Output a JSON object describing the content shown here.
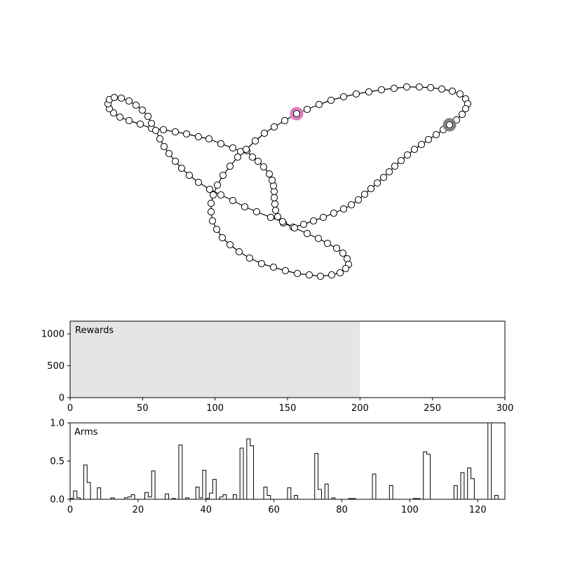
{
  "chart_data": [
    {
      "type": "scatter",
      "title": "",
      "markers": "circles connected by a closed line (tour)",
      "axes_visible": false,
      "highlights": [
        {
          "role": "pink ring",
          "color": "#e377c2",
          "point": [
            423,
            162
          ]
        },
        {
          "role": "gray ring",
          "color": "#7f7f7f",
          "point": [
            641,
            178
          ]
        }
      ],
      "points": [
        [
          423,
          162
        ],
        [
          438,
          156
        ],
        [
          455,
          149
        ],
        [
          472,
          143
        ],
        [
          490,
          138
        ],
        [
          508,
          134
        ],
        [
          526,
          131
        ],
        [
          544,
          128
        ],
        [
          562,
          126
        ],
        [
          580,
          124
        ],
        [
          598,
          124
        ],
        [
          614,
          125
        ],
        [
          630,
          127
        ],
        [
          645,
          130
        ],
        [
          656,
          134
        ],
        [
          664,
          141
        ],
        [
          667,
          148
        ],
        [
          664,
          155
        ],
        [
          659,
          163
        ],
        [
          651,
          171
        ],
        [
          641,
          178
        ],
        [
          632,
          185
        ],
        [
          622,
          192
        ],
        [
          611,
          199
        ],
        [
          601,
          206
        ],
        [
          591,
          213
        ],
        [
          581,
          221
        ],
        [
          572,
          229
        ],
        [
          563,
          237
        ],
        [
          555,
          245
        ],
        [
          547,
          253
        ],
        [
          538,
          261
        ],
        [
          529,
          269
        ],
        [
          520,
          277
        ],
        [
          511,
          285
        ],
        [
          501,
          292
        ],
        [
          490,
          298
        ],
        [
          476,
          304
        ],
        [
          461,
          310
        ],
        [
          447,
          315
        ],
        [
          433,
          320
        ],
        [
          418,
          324
        ],
        [
          404,
          318
        ],
        [
          396,
          309
        ],
        [
          393,
          300
        ],
        [
          392,
          291
        ],
        [
          391,
          282
        ],
        [
          391,
          273
        ],
        [
          390,
          265
        ],
        [
          388,
          257
        ],
        [
          384,
          248
        ],
        [
          376,
          238
        ],
        [
          368,
          230
        ],
        [
          360,
          224
        ],
        [
          352,
          215
        ],
        [
          343,
          216
        ],
        [
          332,
          211
        ],
        [
          315,
          205
        ],
        [
          298,
          198
        ],
        [
          283,
          195
        ],
        [
          266,
          191
        ],
        [
          250,
          188
        ],
        [
          233,
          185
        ],
        [
          216,
          183
        ],
        [
          200,
          177
        ],
        [
          184,
          172
        ],
        [
          171,
          167
        ],
        [
          162,
          161
        ],
        [
          156,
          155
        ],
        [
          154,
          148
        ],
        [
          156,
          142
        ],
        [
          163,
          139
        ],
        [
          173,
          140
        ],
        [
          184,
          144
        ],
        [
          194,
          150
        ],
        [
          203,
          157
        ],
        [
          211,
          166
        ],
        [
          216,
          176
        ],
        [
          222,
          186
        ],
        [
          228,
          198
        ],
        [
          234,
          209
        ],
        [
          241,
          219
        ],
        [
          250,
          230
        ],
        [
          259,
          240
        ],
        [
          270,
          250
        ],
        [
          283,
          260
        ],
        [
          299,
          270
        ],
        [
          315,
          278
        ],
        [
          332,
          286
        ],
        [
          349,
          295
        ],
        [
          366,
          302
        ],
        [
          386,
          310
        ],
        [
          403,
          316
        ],
        [
          420,
          325
        ],
        [
          438,
          333
        ],
        [
          454,
          340
        ],
        [
          467,
          347
        ],
        [
          480,
          354
        ],
        [
          489,
          361
        ],
        [
          495,
          369
        ],
        [
          497,
          377
        ],
        [
          493,
          383
        ],
        [
          485,
          389
        ],
        [
          473,
          392
        ],
        [
          457,
          394
        ],
        [
          441,
          392
        ],
        [
          424,
          390
        ],
        [
          407,
          386
        ],
        [
          390,
          381
        ],
        [
          373,
          376
        ],
        [
          356,
          368
        ],
        [
          341,
          359
        ],
        [
          328,
          349
        ],
        [
          317,
          339
        ],
        [
          309,
          327
        ],
        [
          303,
          315
        ],
        [
          301,
          302
        ],
        [
          301,
          290
        ],
        [
          304,
          278
        ],
        [
          310,
          264
        ],
        [
          318,
          250
        ],
        [
          328,
          237
        ],
        [
          339,
          224
        ],
        [
          351,
          213
        ],
        [
          364,
          201
        ],
        [
          377,
          190
        ],
        [
          391,
          181
        ],
        [
          406,
          172
        ]
      ]
    },
    {
      "type": "area",
      "label": "Rewards",
      "xlim": [
        0,
        300
      ],
      "ylim": [
        0,
        1200
      ],
      "xticks": [
        "0",
        "50",
        "100",
        "150",
        "200",
        "250",
        "300"
      ],
      "yticks": [
        "0",
        "500",
        "1000"
      ],
      "fill_color": "#e5e5e5",
      "series": [
        {
          "x": [
            0,
            200
          ],
          "values": [
            1200,
            1200
          ]
        }
      ]
    },
    {
      "type": "bar",
      "style": "step histogram",
      "label": "Arms",
      "xlim": [
        0,
        128
      ],
      "ylim": [
        0,
        1.0
      ],
      "xticks": [
        "0",
        "20",
        "40",
        "60",
        "80",
        "100",
        "120"
      ],
      "yticks": [
        "0.0",
        "0.5",
        "1.0"
      ],
      "values": [
        0.01,
        0.11,
        0.02,
        0.0,
        0.45,
        0.22,
        0.0,
        0.0,
        0.15,
        0.0,
        0.0,
        0.0,
        0.02,
        0.0,
        0.0,
        0.0,
        0.02,
        0.03,
        0.06,
        0.0,
        0.0,
        0.0,
        0.09,
        0.03,
        0.37,
        0.0,
        0.0,
        0.0,
        0.07,
        0.0,
        0.01,
        0.0,
        0.71,
        0.0,
        0.02,
        0.0,
        0.0,
        0.16,
        0.02,
        0.38,
        0.01,
        0.08,
        0.26,
        0.0,
        0.03,
        0.06,
        0.0,
        0.0,
        0.06,
        0.0,
        0.67,
        0.0,
        0.79,
        0.7,
        0.0,
        0.0,
        0.0,
        0.16,
        0.05,
        0.0,
        0.0,
        0.0,
        0.0,
        0.0,
        0.15,
        0.0,
        0.05,
        0.0,
        0.0,
        0.0,
        0.0,
        0.0,
        0.6,
        0.13,
        0.0,
        0.2,
        0.0,
        0.02,
        0.0,
        0.0,
        0.0,
        0.0,
        0.01,
        0.01,
        0.0,
        0.0,
        0.0,
        0.0,
        0.0,
        0.33,
        0.0,
        0.0,
        0.0,
        0.0,
        0.18,
        0.0,
        0.0,
        0.0,
        0.0,
        0.0,
        0.0,
        0.01,
        0.01,
        0.0,
        0.62,
        0.59,
        0.0,
        0.0,
        0.0,
        0.0,
        0.0,
        0.0,
        0.0,
        0.18,
        0.0,
        0.35,
        0.0,
        0.41,
        0.27,
        0.0,
        0.0,
        0.0,
        0.0,
        1.0,
        0.0,
        0.05,
        0.0,
        0.0
      ]
    }
  ]
}
